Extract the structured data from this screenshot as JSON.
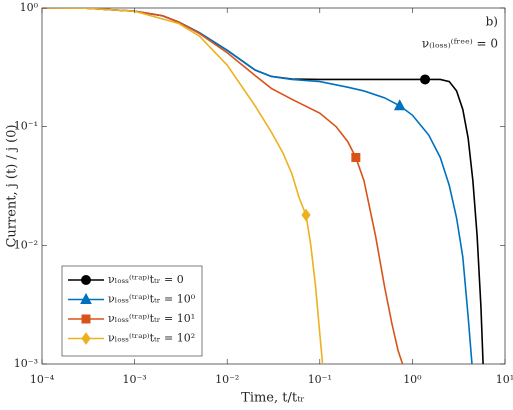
{
  "chart_data": {
    "type": "line",
    "log_x": true,
    "log_y": true,
    "xlabel": "Time, t/tₜᵣ",
    "ylabel": "Current, j (t) / j (0)",
    "annotations": [
      "b)",
      "ν₍ₗₒₛₛ₎⁽ᶠʳᵉᵉ⁾ = 0"
    ],
    "xlim": [
      0.0001,
      10
    ],
    "ylim": [
      0.001,
      1
    ],
    "xticks": [
      {
        "value": 0.0001,
        "label": "10⁻⁴"
      },
      {
        "value": 0.001,
        "label": "10⁻³"
      },
      {
        "value": 0.01,
        "label": "10⁻²"
      },
      {
        "value": 0.1,
        "label": "10⁻¹"
      },
      {
        "value": 1,
        "label": "10⁰"
      },
      {
        "value": 10,
        "label": "10¹"
      }
    ],
    "yticks": [
      {
        "value": 0.001,
        "label": "10⁻³"
      },
      {
        "value": 0.01,
        "label": "10⁻²"
      },
      {
        "value": 0.1,
        "label": "10⁻¹"
      },
      {
        "value": 1,
        "label": "10⁰"
      }
    ],
    "legend": "lower left",
    "series": [
      {
        "name": "νₗₒₛₛ⁽ᵗʳᵃᵖ⁾tₜᵣ = 0",
        "color": "#000000",
        "marker": "circle",
        "marker_x": 1.37,
        "marker_y": 0.25,
        "x": [
          0.0001,
          0.0003,
          0.001,
          0.002,
          0.003,
          0.005,
          0.01,
          0.02,
          0.03,
          0.05,
          0.1,
          1,
          2,
          2.5,
          3,
          3.5,
          4,
          4.5,
          5,
          5.5,
          5.8,
          6
        ],
        "values": [
          1,
          0.995,
          0.94,
          0.86,
          0.76,
          0.62,
          0.44,
          0.3,
          0.265,
          0.252,
          0.25,
          0.25,
          0.25,
          0.24,
          0.2,
          0.14,
          0.08,
          0.035,
          0.012,
          0.003,
          0.001,
          0.0005
        ]
      },
      {
        "name": "νₗₒₛₛ⁽ᵗʳᵃᵖ⁾tₜᵣ = 10⁰",
        "color": "#0072bd",
        "marker": "triangle",
        "marker_x": 0.73,
        "marker_y": 0.15,
        "x": [
          0.0001,
          0.0003,
          0.001,
          0.002,
          0.003,
          0.005,
          0.01,
          0.02,
          0.03,
          0.05,
          0.1,
          0.2,
          0.3,
          0.5,
          0.73,
          1,
          1.5,
          2,
          2.5,
          3,
          3.5,
          4,
          4.4,
          4.7
        ],
        "values": [
          1,
          0.995,
          0.94,
          0.86,
          0.76,
          0.62,
          0.44,
          0.3,
          0.265,
          0.25,
          0.24,
          0.215,
          0.2,
          0.175,
          0.15,
          0.125,
          0.085,
          0.055,
          0.032,
          0.017,
          0.008,
          0.0025,
          0.001,
          0.0005
        ]
      },
      {
        "name": "νₗₒₛₛ⁽ᵗʳᵃᵖ⁾tₜᵣ = 10¹",
        "color": "#d95319",
        "marker": "square",
        "marker_x": 0.245,
        "marker_y": 0.055,
        "x": [
          0.0001,
          0.0003,
          0.001,
          0.002,
          0.003,
          0.005,
          0.01,
          0.02,
          0.03,
          0.05,
          0.1,
          0.15,
          0.2,
          0.245,
          0.3,
          0.4,
          0.5,
          0.6,
          0.7,
          0.8,
          0.85
        ],
        "values": [
          1,
          0.995,
          0.94,
          0.86,
          0.76,
          0.61,
          0.42,
          0.27,
          0.21,
          0.17,
          0.13,
          0.1,
          0.075,
          0.055,
          0.035,
          0.012,
          0.0045,
          0.0022,
          0.0013,
          0.00095,
          0.0007
        ]
      },
      {
        "name": "νₗₒₛₛ⁽ᵗʳᵃᵖ⁾tₜᵣ = 10²",
        "color": "#edb120",
        "marker": "diamond",
        "marker_x": 0.071,
        "marker_y": 0.018,
        "x": [
          0.0001,
          0.0003,
          0.001,
          0.003,
          0.005,
          0.01,
          0.02,
          0.03,
          0.04,
          0.05,
          0.06,
          0.071,
          0.08,
          0.09,
          0.1,
          0.11
        ],
        "values": [
          1,
          0.995,
          0.94,
          0.74,
          0.58,
          0.33,
          0.15,
          0.09,
          0.06,
          0.04,
          0.025,
          0.018,
          0.01,
          0.0045,
          0.0018,
          0.0008
        ]
      }
    ]
  }
}
